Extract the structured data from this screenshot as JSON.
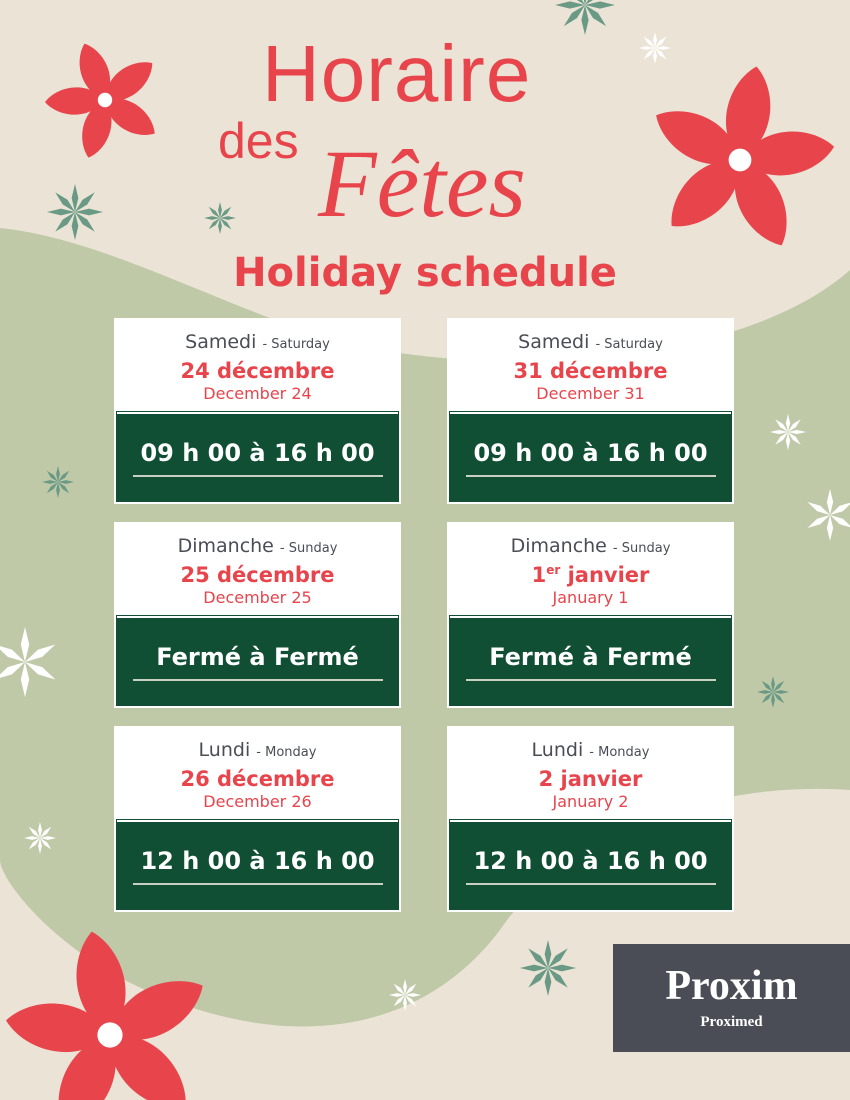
{
  "title": {
    "line1": "Horaire",
    "line2": "des",
    "line3": "Fêtes",
    "subtitle": "Holiday schedule"
  },
  "colors": {
    "background": "#ebe4d6",
    "blob": "#bfc9a8",
    "red": "#e8444c",
    "dark_green": "#104f33",
    "logo_bg": "#4a4d55",
    "logo_green": "#8dc63f"
  },
  "cards": [
    {
      "day_fr": "Samedi",
      "day_en": "- Saturday",
      "date_fr": "24 décembre",
      "date_sup": "",
      "date_fr_rest": "",
      "date_en": "December 24",
      "hours": "09 h 00 à 16 h 00"
    },
    {
      "day_fr": "Samedi",
      "day_en": "- Saturday",
      "date_fr": "31 décembre",
      "date_sup": "",
      "date_fr_rest": "",
      "date_en": "December 31",
      "hours": "09 h 00 à 16 h 00"
    },
    {
      "day_fr": "Dimanche",
      "day_en": "- Sunday",
      "date_fr": "25 décembre",
      "date_sup": "",
      "date_fr_rest": "",
      "date_en": "December 25",
      "hours": "Fermé à Fermé"
    },
    {
      "day_fr": "Dimanche",
      "day_en": "- Sunday",
      "date_fr": "1",
      "date_sup": "er",
      "date_fr_rest": " janvier",
      "date_en": "January 1",
      "hours": "Fermé à Fermé"
    },
    {
      "day_fr": "Lundi",
      "day_en": "- Monday",
      "date_fr": "26 décembre",
      "date_sup": "",
      "date_fr_rest": "",
      "date_en": "December 26",
      "hours": "12 h 00 à 16 h 00"
    },
    {
      "day_fr": "Lundi",
      "day_en": "- Monday",
      "date_fr": "2 janvier",
      "date_sup": "",
      "date_fr_rest": "",
      "date_en": "January 2",
      "hours": "12 h 00 à 16 h 00"
    }
  ],
  "logo": {
    "brand": "Proxim",
    "sub_brand": "Proximed"
  }
}
